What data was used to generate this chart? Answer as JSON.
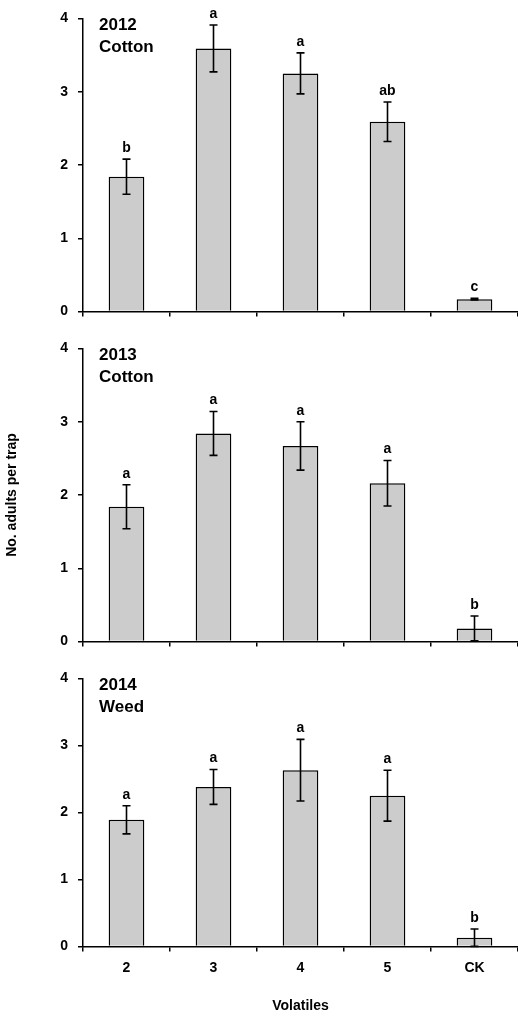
{
  "chart_data": [
    {
      "type": "bar",
      "title": "2012",
      "subtitle": "Cotton",
      "categories": [
        "2",
        "3",
        "4",
        "5",
        "CK"
      ],
      "values": [
        1.84,
        3.59,
        3.25,
        2.59,
        0.17
      ],
      "errors": [
        0.24,
        0.32,
        0.28,
        0.27,
        0.01
      ],
      "color": "#cccccc",
      "ylim": [
        0,
        4
      ],
      "yticks": [
        0,
        1,
        2,
        3,
        4
      ],
      "grid": false,
      "legend": false,
      "tick_labels": "y",
      "annotations": [
        {
          "text": "b",
          "x": "2",
          "y": 2.08
        },
        {
          "text": "a",
          "x": "3",
          "y": 3.91
        },
        {
          "text": "a",
          "x": "4",
          "y": 3.53
        },
        {
          "text": "ab",
          "x": "5",
          "y": 2.86
        },
        {
          "text": "c",
          "x": "CK",
          "y": 0.18
        }
      ]
    },
    {
      "type": "bar",
      "title": "2013",
      "subtitle": "Cotton",
      "ylabel": "No. adults per trap",
      "categories": [
        "2",
        "3",
        "4",
        "5",
        "CK"
      ],
      "values": [
        1.84,
        2.84,
        2.67,
        2.16,
        0.18
      ],
      "errors": [
        0.3,
        0.3,
        0.33,
        0.31,
        0.17
      ],
      "color": "#cccccc",
      "ylim": [
        0,
        4
      ],
      "yticks": [
        0,
        1,
        2,
        3,
        4
      ],
      "grid": false,
      "legend": false,
      "tick_labels": "y",
      "annotations": [
        {
          "text": "a",
          "x": "2",
          "y": 2.14
        },
        {
          "text": "a",
          "x": "3",
          "y": 3.14
        },
        {
          "text": "a",
          "x": "4",
          "y": 3.0
        },
        {
          "text": "a",
          "x": "5",
          "y": 2.47
        },
        {
          "text": "b",
          "x": "CK",
          "y": 0.35
        }
      ]
    },
    {
      "type": "bar",
      "title": "2014",
      "subtitle": "Weed",
      "xlabel": "Volatiles",
      "categories": [
        "2",
        "3",
        "4",
        "5",
        "CK"
      ],
      "values": [
        1.89,
        2.38,
        2.63,
        2.25,
        0.13
      ],
      "errors": [
        0.21,
        0.26,
        0.46,
        0.38,
        0.13
      ],
      "color": "#cccccc",
      "ylim": [
        0,
        4
      ],
      "yticks": [
        0,
        1,
        2,
        3,
        4
      ],
      "grid": false,
      "legend": false,
      "annotations": [
        {
          "text": "a",
          "x": "2",
          "y": 2.1
        },
        {
          "text": "a",
          "x": "3",
          "y": 2.64
        },
        {
          "text": "a",
          "x": "4",
          "y": 3.09
        },
        {
          "text": "a",
          "x": "5",
          "y": 2.63
        },
        {
          "text": "b",
          "x": "CK",
          "y": 0.26
        }
      ]
    }
  ]
}
